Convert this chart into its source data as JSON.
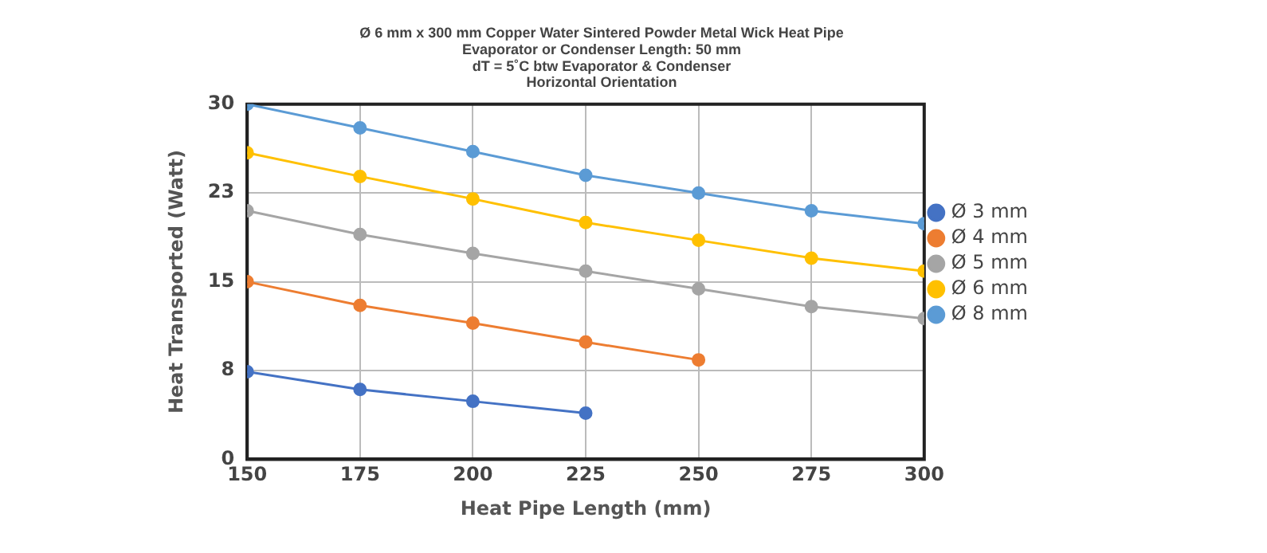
{
  "chart_data": {
    "type": "line",
    "title": [
      "Ø 6 mm x 300 mm Copper Water Sintered Powder Metal Wick Heat Pipe",
      "Evaporator or Condenser Length: 50 mm",
      "dT = 5˚C btw Evaporator & Condenser",
      "Horizontal Orientation"
    ],
    "xlabel": "Heat Pipe Length (mm)",
    "ylabel": "Heat Transported (Watt)",
    "x": [
      150,
      175,
      200,
      225,
      250,
      275,
      300
    ],
    "series": [
      {
        "name": "Ø 3 mm",
        "color": "#4472c4",
        "values": [
          7.4,
          5.9,
          4.9,
          3.9,
          null,
          null,
          null
        ]
      },
      {
        "name": "Ø 4 mm",
        "color": "#ed7d31",
        "values": [
          15.0,
          13.0,
          11.5,
          9.9,
          8.4,
          null,
          null
        ]
      },
      {
        "name": "Ø 5 mm",
        "color": "#a5a5a5",
        "values": [
          21.0,
          19.0,
          17.4,
          15.9,
          14.4,
          12.9,
          11.9
        ]
      },
      {
        "name": "Ø 6 mm",
        "color": "#ffc000",
        "values": [
          25.9,
          23.9,
          22.0,
          20.0,
          18.5,
          17.0,
          15.9
        ]
      },
      {
        "name": "Ø 8 mm",
        "color": "#5b9bd5",
        "values": [
          30.0,
          28.0,
          26.0,
          24.0,
          22.5,
          21.0,
          19.9
        ]
      }
    ],
    "xlim": [
      150,
      300
    ],
    "xticks": [
      150,
      175,
      200,
      225,
      250,
      275,
      300
    ],
    "ylim": [
      0,
      30
    ],
    "yticks": [
      0,
      {
        "value": 7.5,
        "label": "8"
      },
      15,
      {
        "value": 22.5,
        "label": "23"
      },
      30
    ],
    "grid": true,
    "legend": "right",
    "marker": "circle",
    "line_style": "solid"
  }
}
